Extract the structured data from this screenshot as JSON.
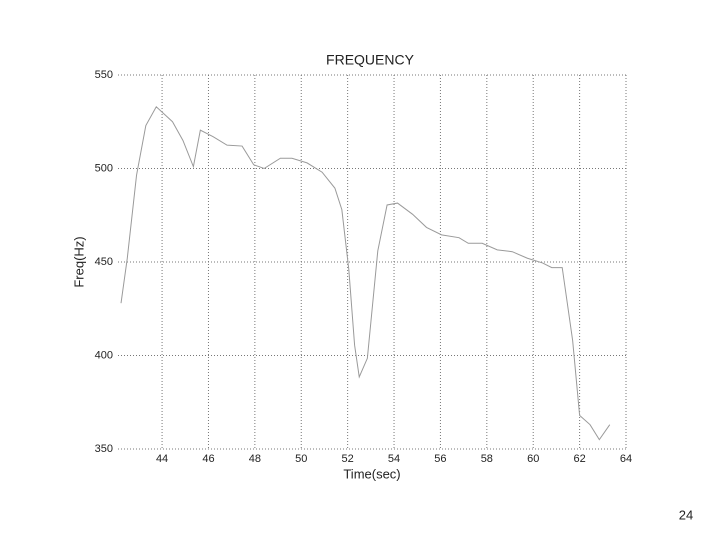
{
  "chart_data": {
    "type": "line",
    "title": "FREQUENCY",
    "x_label": "Time(sec)",
    "y_label": "Freq(Hz)",
    "x": [
      42.23,
      42.5,
      42.9,
      43.3,
      43.75,
      44.1,
      44.45,
      44.9,
      45.35,
      45.65,
      46.2,
      46.8,
      47.45,
      47.95,
      48.4,
      49.1,
      49.6,
      50.25,
      50.9,
      51.45,
      51.75,
      52.05,
      52.3,
      52.5,
      52.85,
      53.3,
      53.7,
      54.15,
      54.8,
      55.4,
      56.05,
      56.8,
      57.2,
      57.8,
      58.45,
      59.1,
      59.75,
      60.4,
      60.8,
      61.25,
      61.7,
      62.0,
      62.45,
      62.85,
      63.3
    ],
    "series": [
      {
        "name": "Frequency",
        "color": "#9a9a9a",
        "values": [
          428,
          452,
          496.5,
          523,
          533,
          529,
          525,
          515,
          501,
          520.5,
          517,
          512.5,
          512,
          502,
          500,
          505.5,
          505.5,
          503,
          498,
          489.5,
          478,
          446,
          405.5,
          388.5,
          398.5,
          456,
          480.5,
          481.5,
          475.5,
          468.5,
          464.5,
          463,
          460,
          460,
          456.5,
          455.5,
          452,
          449.5,
          447,
          447,
          408,
          368,
          363,
          355,
          363
        ]
      }
    ],
    "xlim": [
      42.1,
      64
    ],
    "xticks": [
      44,
      46,
      48,
      50,
      52,
      54,
      56,
      58,
      60,
      62,
      64
    ],
    "ylim": [
      350,
      550
    ],
    "yticks": [
      350,
      400,
      450,
      500,
      550
    ],
    "grid": true
  },
  "page_number": "24"
}
